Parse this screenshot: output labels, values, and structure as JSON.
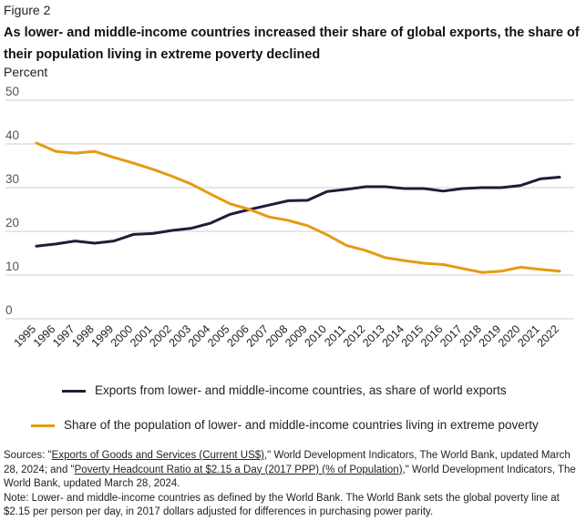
{
  "figure_label": "Figure 2",
  "title": "As lower- and middle-income countries increased their share of global exports, the share of their population living in extreme poverty declined",
  "colors": {
    "exports": "#1f1d3a",
    "poverty": "#e69a12",
    "grid": "#cccccc"
  },
  "chart_data": {
    "type": "line",
    "ylabel": "Percent",
    "ylim": [
      0,
      50
    ],
    "yticks": [
      0,
      10,
      20,
      30,
      40,
      50
    ],
    "grid": true,
    "x": [
      "1995",
      "1996",
      "1997",
      "1998",
      "1999",
      "2000",
      "2001",
      "2002",
      "2003",
      "2004",
      "2005",
      "2006",
      "2007",
      "2008",
      "2009",
      "2010",
      "2011",
      "2012",
      "2013",
      "2014",
      "2015",
      "2016",
      "2017",
      "2018",
      "2019",
      "2020",
      "2021",
      "2022"
    ],
    "series": [
      {
        "name": "Exports from lower- and middle-income countries, as share of world exports",
        "key": "exports",
        "values": [
          16.6,
          17.1,
          17.8,
          17.3,
          17.8,
          19.3,
          19.5,
          20.2,
          20.7,
          21.9,
          23.9,
          25.0,
          26.0,
          27.0,
          27.1,
          29.1,
          29.6,
          30.2,
          30.2,
          29.8,
          29.8,
          29.2,
          29.8,
          30.0,
          30.0,
          30.5,
          32.0,
          32.4
        ]
      },
      {
        "name": "Share of the population of lower- and middle-income countries living in extreme poverty",
        "key": "poverty",
        "values": [
          40.2,
          38.3,
          37.9,
          38.3,
          36.9,
          35.6,
          34.2,
          32.6,
          30.8,
          28.5,
          26.3,
          25.0,
          23.3,
          22.5,
          21.3,
          19.2,
          16.8,
          15.6,
          14.0,
          13.3,
          12.7,
          12.4,
          11.5,
          10.6,
          10.9,
          11.8,
          11.3,
          10.9
        ]
      }
    ],
    "legend_position": "below"
  },
  "sources": {
    "prefix": "Sources: \"",
    "link1": "Exports of Goods and Services (Current US$)",
    "mid1": ",\" World Development Indicators, The World Bank, updated March 28, 2024; and \"",
    "link2": "Poverty Headcount Ratio at $2.15 a Day (2017 PPP) (% of Population)",
    "mid2": ",\" World Development Indicators, The World Bank, updated March 28, 2024.",
    "note": "Note: Lower- and middle-income countries as defined by the World Bank. The World Bank sets the global poverty line at $2.15 per person per day, in 2017 dollars adjusted for differences in purchasing power parity."
  }
}
